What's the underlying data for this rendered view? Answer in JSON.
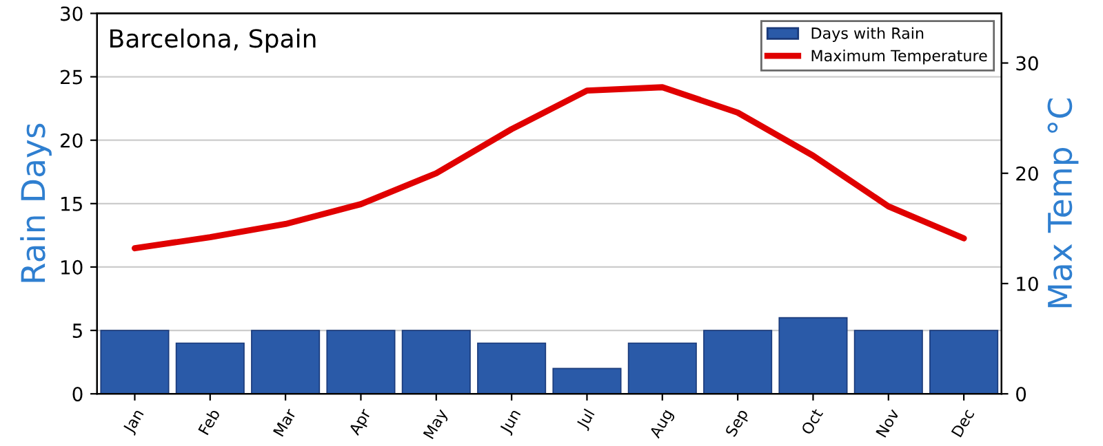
{
  "chart_data": {
    "type": "bar",
    "title": "Barcelona, Spain",
    "ylabel": "Rain Days",
    "y2label": "Max Temp °C",
    "categories": [
      "Jan",
      "Feb",
      "Mar",
      "Apr",
      "May",
      "Jun",
      "Jul",
      "Aug",
      "Sep",
      "Oct",
      "Nov",
      "Dec"
    ],
    "series": [
      {
        "name": "Days with Rain",
        "color": "#2a5aa8",
        "values": [
          5,
          4,
          5,
          5,
          5,
          4,
          2,
          4,
          5,
          6,
          5,
          5
        ]
      },
      {
        "name": "Maximum Temperature",
        "type": "line",
        "axis": "y2",
        "color": "#e00000",
        "values": [
          13.2,
          14.2,
          15.4,
          17.2,
          20,
          24,
          27.5,
          27.8,
          25.5,
          21.6,
          17,
          14.1
        ]
      }
    ],
    "ylim": [
      0,
      30
    ],
    "yticks": [
      0,
      5,
      10,
      15,
      20,
      25,
      30
    ],
    "y2lim": [
      0,
      34.5
    ],
    "y2ticks": [
      0,
      10,
      20,
      30
    ],
    "grid": "y",
    "legend": "top right",
    "marker": "none",
    "line_style": "solid"
  }
}
